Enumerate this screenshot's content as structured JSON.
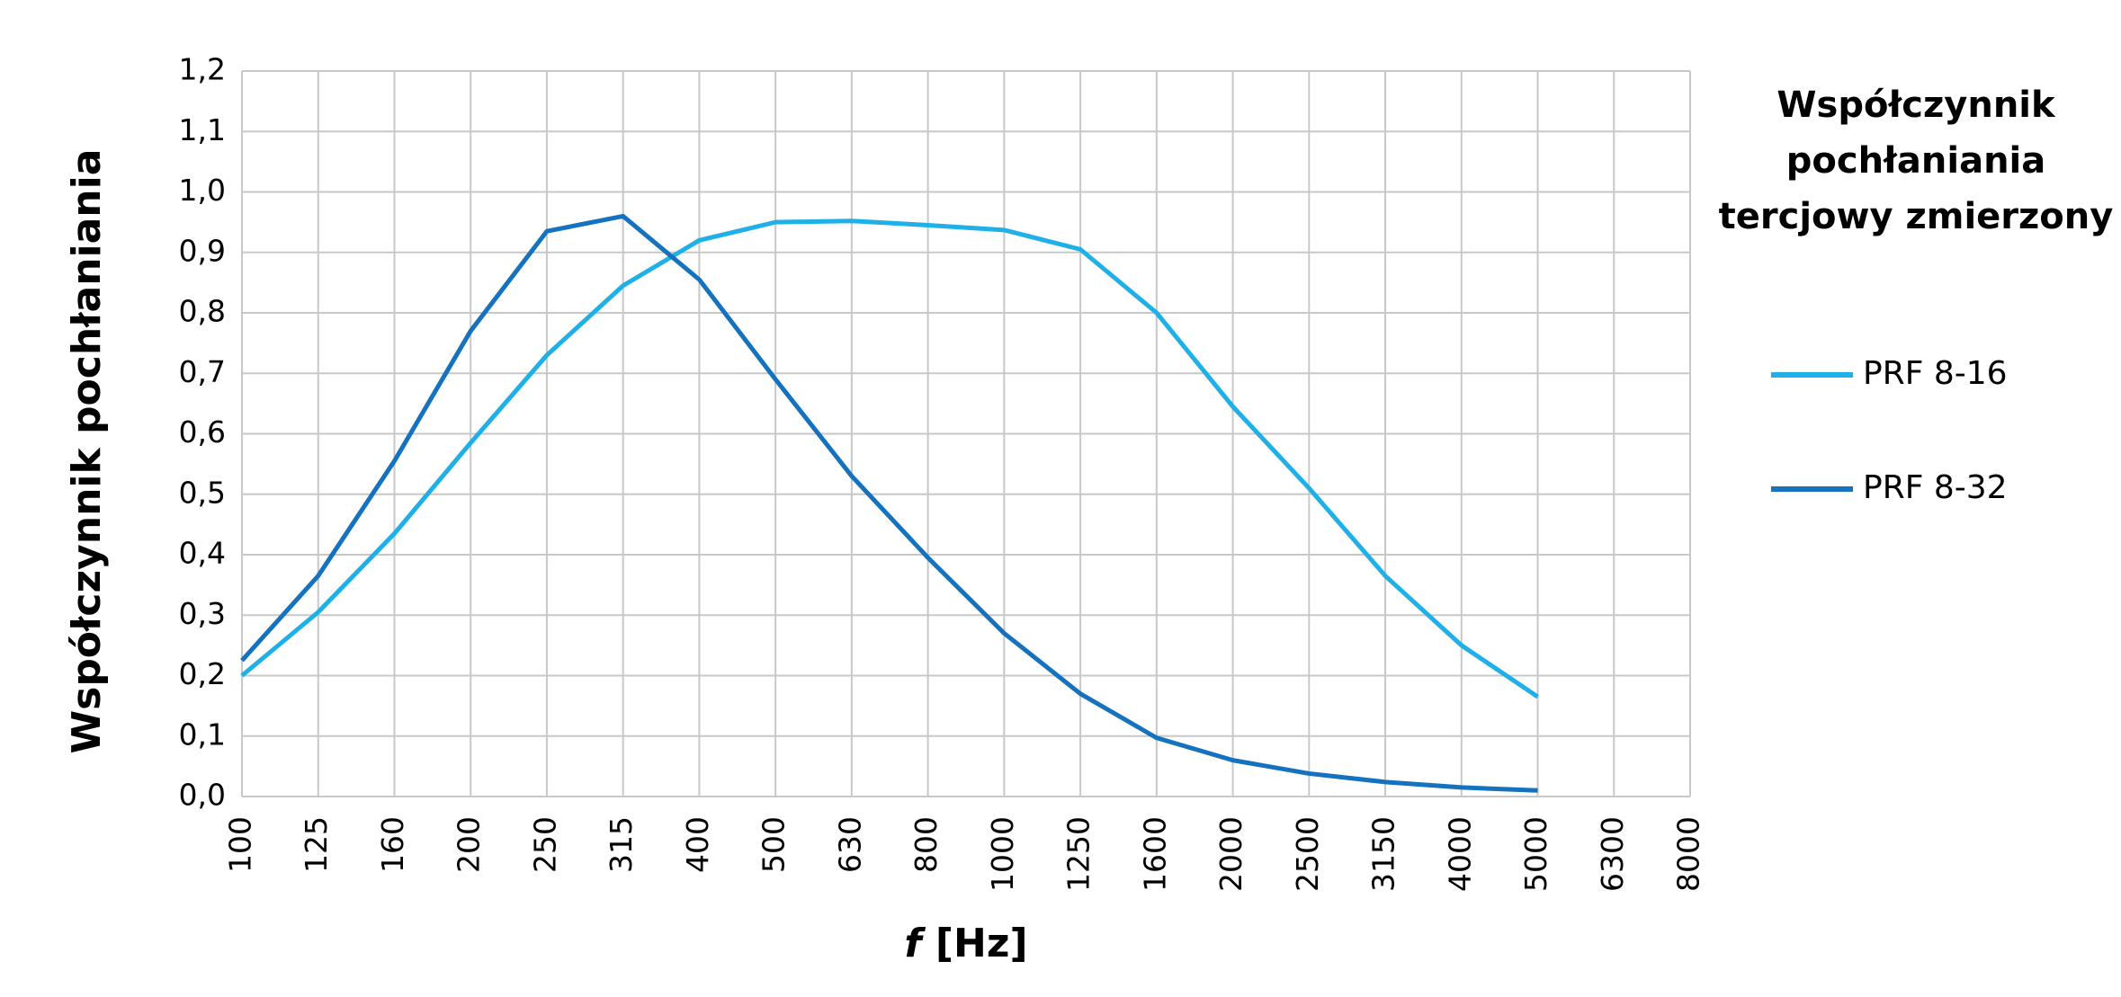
{
  "chart_data": {
    "type": "line",
    "legend_title": "Współczynnik pochłaniania tercjowy zmierzony",
    "ylabel": "Współczynnik pochłaniania",
    "xlabel": {
      "symbol": "f",
      "unit": "[Hz]"
    },
    "categories": [
      "100",
      "125",
      "160",
      "200",
      "250",
      "315",
      "400",
      "500",
      "630",
      "800",
      "1000",
      "1250",
      "1600",
      "2000",
      "2500",
      "3150",
      "4000",
      "5000",
      "6300",
      "8000"
    ],
    "series": [
      {
        "name": "PRF 8-16",
        "color": "#1fb0e8",
        "values": [
          0.2,
          0.305,
          0.435,
          0.585,
          0.73,
          0.845,
          0.92,
          0.95,
          0.952,
          0.945,
          0.937,
          0.905,
          0.8,
          0.645,
          0.51,
          0.365,
          0.25,
          0.165,
          null,
          null
        ]
      },
      {
        "name": "PRF 8-32",
        "color": "#1472bf",
        "values": [
          0.225,
          0.365,
          0.555,
          0.77,
          0.935,
          0.96,
          0.855,
          0.69,
          0.53,
          0.395,
          0.27,
          0.17,
          0.097,
          0.06,
          0.038,
          0.024,
          0.015,
          0.01,
          null,
          null
        ]
      }
    ],
    "ylim": [
      0,
      1.2
    ],
    "yticks": [
      {
        "value": 0,
        "label": "0,0"
      },
      {
        "value": 0.1,
        "label": "0,1"
      },
      {
        "value": 0.2,
        "label": "0,2"
      },
      {
        "value": 0.3,
        "label": "0,3"
      },
      {
        "value": 0.4,
        "label": "0,4"
      },
      {
        "value": 0.5,
        "label": "0,5"
      },
      {
        "value": 0.6,
        "label": "0,6"
      },
      {
        "value": 0.7,
        "label": "0,7"
      },
      {
        "value": 0.8,
        "label": "0,8"
      },
      {
        "value": 0.9,
        "label": "0,9"
      },
      {
        "value": 1.0,
        "label": "1,0"
      },
      {
        "value": 1.1,
        "label": "1,1"
      },
      {
        "value": 1.2,
        "label": "1,2"
      }
    ],
    "grid": true
  }
}
